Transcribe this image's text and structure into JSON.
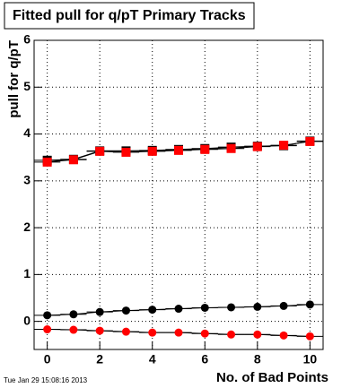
{
  "chart_data": {
    "type": "scatter",
    "title": "Fitted pull for q/pT Primary Tracks",
    "y_label": "pull for q/pT",
    "x_label": "No. of Bad Points",
    "timestamp": "Tue Jan 29 15:08:16 2013",
    "x": [
      0,
      1,
      2,
      3,
      4,
      5,
      6,
      7,
      8,
      9,
      10
    ],
    "series": [
      {
        "color": "#000000",
        "marker": "square",
        "values": [
          3.44,
          3.46,
          3.64,
          3.64,
          3.65,
          3.67,
          3.69,
          3.72,
          3.74,
          3.75,
          3.85
        ]
      },
      {
        "color": "#ff0000",
        "marker": "square",
        "values": [
          3.4,
          3.45,
          3.63,
          3.61,
          3.63,
          3.65,
          3.67,
          3.69,
          3.73,
          3.76,
          3.84
        ]
      },
      {
        "color": "#000000",
        "marker": "circle",
        "values": [
          0.13,
          0.15,
          0.2,
          0.23,
          0.25,
          0.27,
          0.29,
          0.3,
          0.31,
          0.33,
          0.36
        ]
      },
      {
        "color": "#ff0000",
        "marker": "circle",
        "values": [
          -0.17,
          -0.18,
          -0.2,
          -0.22,
          -0.24,
          -0.24,
          -0.26,
          -0.28,
          -0.28,
          -0.3,
          -0.32
        ]
      }
    ],
    "xlim": [
      -0.5,
      10.5
    ],
    "xticks": [
      0,
      2,
      4,
      6,
      8,
      10
    ],
    "ylim": [
      -0.6,
      6
    ],
    "yticks": [
      0,
      1,
      2,
      3,
      4,
      5,
      6
    ],
    "grid": true
  }
}
